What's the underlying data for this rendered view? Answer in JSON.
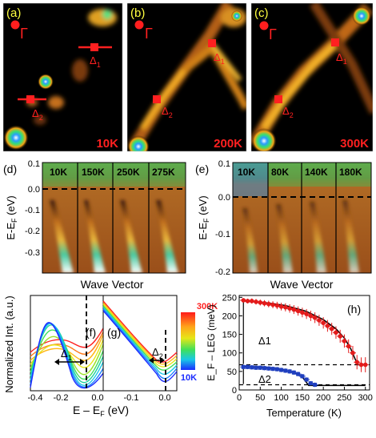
{
  "panels_top": [
    {
      "letter": "(a)",
      "temp": "10K",
      "gamma": "Γ",
      "delta1": "Δ",
      "delta1_sub": "1",
      "delta2": "Δ",
      "delta2_sub": "2"
    },
    {
      "letter": "(b)",
      "temp": "200K",
      "gamma": "Γ",
      "delta1": "Δ",
      "delta1_sub": "1",
      "delta2": "Δ",
      "delta2_sub": "2"
    },
    {
      "letter": "(c)",
      "temp": "300K",
      "gamma": "Γ",
      "delta1": "Δ",
      "delta1_sub": "1",
      "delta2": "Δ",
      "delta2_sub": "2"
    }
  ],
  "panel_d": {
    "letter": "(d)",
    "temps": [
      "10K",
      "150K",
      "250K",
      "275K"
    ],
    "ylabel": "E-E",
    "ylabel_sub": "F",
    "ylabel_unit": " (eV)",
    "yticks": [
      "0.1",
      "0.0",
      "-0.1",
      "-0.2",
      "-0.3"
    ],
    "xlabel": "Wave Vector"
  },
  "panel_e": {
    "letter": "(e)",
    "temps": [
      "10K",
      "80K",
      "140K",
      "180K"
    ],
    "ylabel": "E-E",
    "ylabel_sub": "F",
    "ylabel_unit": " (eV)",
    "yticks": [
      "0.1",
      "0.0",
      "-0.1",
      "-0.2"
    ],
    "xlabel": "Wave Vector"
  },
  "panel_fg": {
    "letter_f": "(f)",
    "letter_g": "(g)",
    "ylabel": "Normalized Int. (a.u.)",
    "xlabel": "E – E",
    "xlabel_sub": "F",
    "xlabel_unit": " (eV)",
    "xticks_f": [
      "-0.4",
      "-0.2",
      "0.0"
    ],
    "xticks_g": [
      "-0.1",
      "0.0"
    ],
    "delta1": "Δ",
    "delta1_sub": "1",
    "delta2": "Δ",
    "delta2_sub": "2",
    "colorbar_top": "300K",
    "colorbar_bottom": "10K"
  },
  "chart_data": {
    "type": "scatter",
    "panel": "(h)",
    "xlabel": "Temperature (K)",
    "ylabel": "E_F – LEG (meV)",
    "xlim": [
      0,
      310
    ],
    "ylim": [
      0,
      255
    ],
    "xticks": [
      "0",
      "50",
      "100",
      "150",
      "200",
      "250",
      "300"
    ],
    "yticks": [
      "0",
      "50",
      "100",
      "150",
      "200",
      "250"
    ],
    "annotations": [
      "Δ1",
      "Δ2"
    ],
    "series": [
      {
        "color": "#e31b1b",
        "x": [
          10,
          20,
          30,
          40,
          50,
          60,
          70,
          80,
          90,
          100,
          110,
          120,
          130,
          140,
          150,
          160,
          170,
          180,
          190,
          200,
          210,
          220,
          230,
          240,
          250,
          260,
          270,
          280,
          290,
          300
        ],
        "y": [
          242,
          240,
          240,
          238,
          236,
          234,
          232,
          230,
          228,
          225,
          223,
          220,
          217,
          213,
          209,
          205,
          200,
          195,
          188,
          181,
          173,
          165,
          155,
          145,
          132,
          118,
          100,
          75,
          68,
          68
        ]
      },
      {
        "color": "#1f3fbf",
        "x": [
          10,
          20,
          30,
          40,
          50,
          60,
          70,
          80,
          90,
          100,
          110,
          120,
          130,
          140,
          150,
          160,
          170,
          180
        ],
        "y": [
          62,
          62,
          61,
          60,
          60,
          59,
          58,
          57,
          56,
          54,
          52,
          50,
          47,
          43,
          37,
          28,
          18,
          14
        ]
      }
    ],
    "fit_curves": [
      {
        "x": [
          10,
          60,
          110,
          160,
          200,
          230,
          250,
          265,
          275,
          282,
          300
        ],
        "y": [
          240,
          236,
          228,
          212,
          190,
          165,
          140,
          112,
          85,
          68,
          68
        ]
      },
      {
        "x": [
          10,
          60,
          100,
          130,
          150,
          160,
          165,
          300
        ],
        "y": [
          63,
          61,
          56,
          47,
          35,
          20,
          12,
          12
        ]
      }
    ],
    "dashed_levels": [
      68,
      14
    ]
  }
}
